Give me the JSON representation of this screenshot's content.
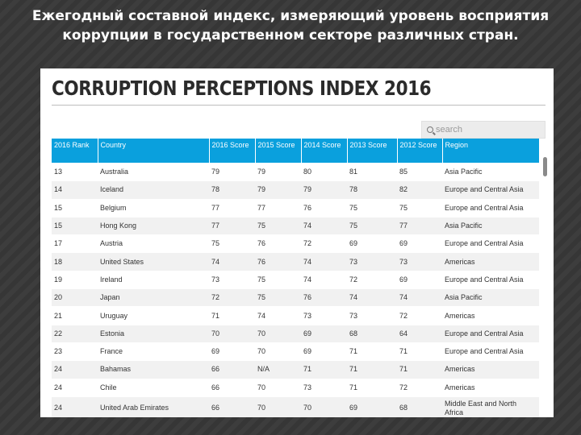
{
  "slide": {
    "title": "Ежегодный составной индекс, измеряющий уровень восприятия коррупции в государственном секторе различных стран."
  },
  "page": {
    "heading": "CORRUPTION PERCEPTIONS INDEX 2016",
    "search": {
      "placeholder": "search",
      "value": ""
    }
  },
  "table": {
    "headers": {
      "rank": "2016 Rank",
      "country": "Country",
      "s2016": "2016 Score",
      "s2015": "2015 Score",
      "s2014": "2014 Score",
      "s2013": "2013 Score",
      "s2012": "2012 Score",
      "region": "Region"
    },
    "rows": [
      {
        "rank": "13",
        "country": "Australia",
        "s2016": "79",
        "s2015": "79",
        "s2014": "80",
        "s2013": "81",
        "s2012": "85",
        "region": "Asia Pacific"
      },
      {
        "rank": "14",
        "country": "Iceland",
        "s2016": "78",
        "s2015": "79",
        "s2014": "79",
        "s2013": "78",
        "s2012": "82",
        "region": "Europe and Central Asia"
      },
      {
        "rank": "15",
        "country": "Belgium",
        "s2016": "77",
        "s2015": "77",
        "s2014": "76",
        "s2013": "75",
        "s2012": "75",
        "region": "Europe and Central Asia"
      },
      {
        "rank": "15",
        "country": "Hong Kong",
        "s2016": "77",
        "s2015": "75",
        "s2014": "74",
        "s2013": "75",
        "s2012": "77",
        "region": "Asia Pacific"
      },
      {
        "rank": "17",
        "country": "Austria",
        "s2016": "75",
        "s2015": "76",
        "s2014": "72",
        "s2013": "69",
        "s2012": "69",
        "region": "Europe and Central Asia"
      },
      {
        "rank": "18",
        "country": "United States",
        "s2016": "74",
        "s2015": "76",
        "s2014": "74",
        "s2013": "73",
        "s2012": "73",
        "region": "Americas"
      },
      {
        "rank": "19",
        "country": "Ireland",
        "s2016": "73",
        "s2015": "75",
        "s2014": "74",
        "s2013": "72",
        "s2012": "69",
        "region": "Europe and Central Asia"
      },
      {
        "rank": "20",
        "country": "Japan",
        "s2016": "72",
        "s2015": "75",
        "s2014": "76",
        "s2013": "74",
        "s2012": "74",
        "region": "Asia Pacific"
      },
      {
        "rank": "21",
        "country": "Uruguay",
        "s2016": "71",
        "s2015": "74",
        "s2014": "73",
        "s2013": "73",
        "s2012": "72",
        "region": "Americas"
      },
      {
        "rank": "22",
        "country": "Estonia",
        "s2016": "70",
        "s2015": "70",
        "s2014": "69",
        "s2013": "68",
        "s2012": "64",
        "region": "Europe and Central Asia"
      },
      {
        "rank": "23",
        "country": "France",
        "s2016": "69",
        "s2015": "70",
        "s2014": "69",
        "s2013": "71",
        "s2012": "71",
        "region": "Europe and Central Asia"
      },
      {
        "rank": "24",
        "country": "Bahamas",
        "s2016": "66",
        "s2015": "N/A",
        "s2014": "71",
        "s2013": "71",
        "s2012": "71",
        "region": "Americas"
      },
      {
        "rank": "24",
        "country": "Chile",
        "s2016": "66",
        "s2015": "70",
        "s2014": "73",
        "s2013": "71",
        "s2012": "72",
        "region": "Americas"
      },
      {
        "rank": "24",
        "country": "United Arab Emirates",
        "s2016": "66",
        "s2015": "70",
        "s2014": "70",
        "s2013": "69",
        "s2012": "68",
        "region": "Middle East and North Africa"
      }
    ]
  }
}
